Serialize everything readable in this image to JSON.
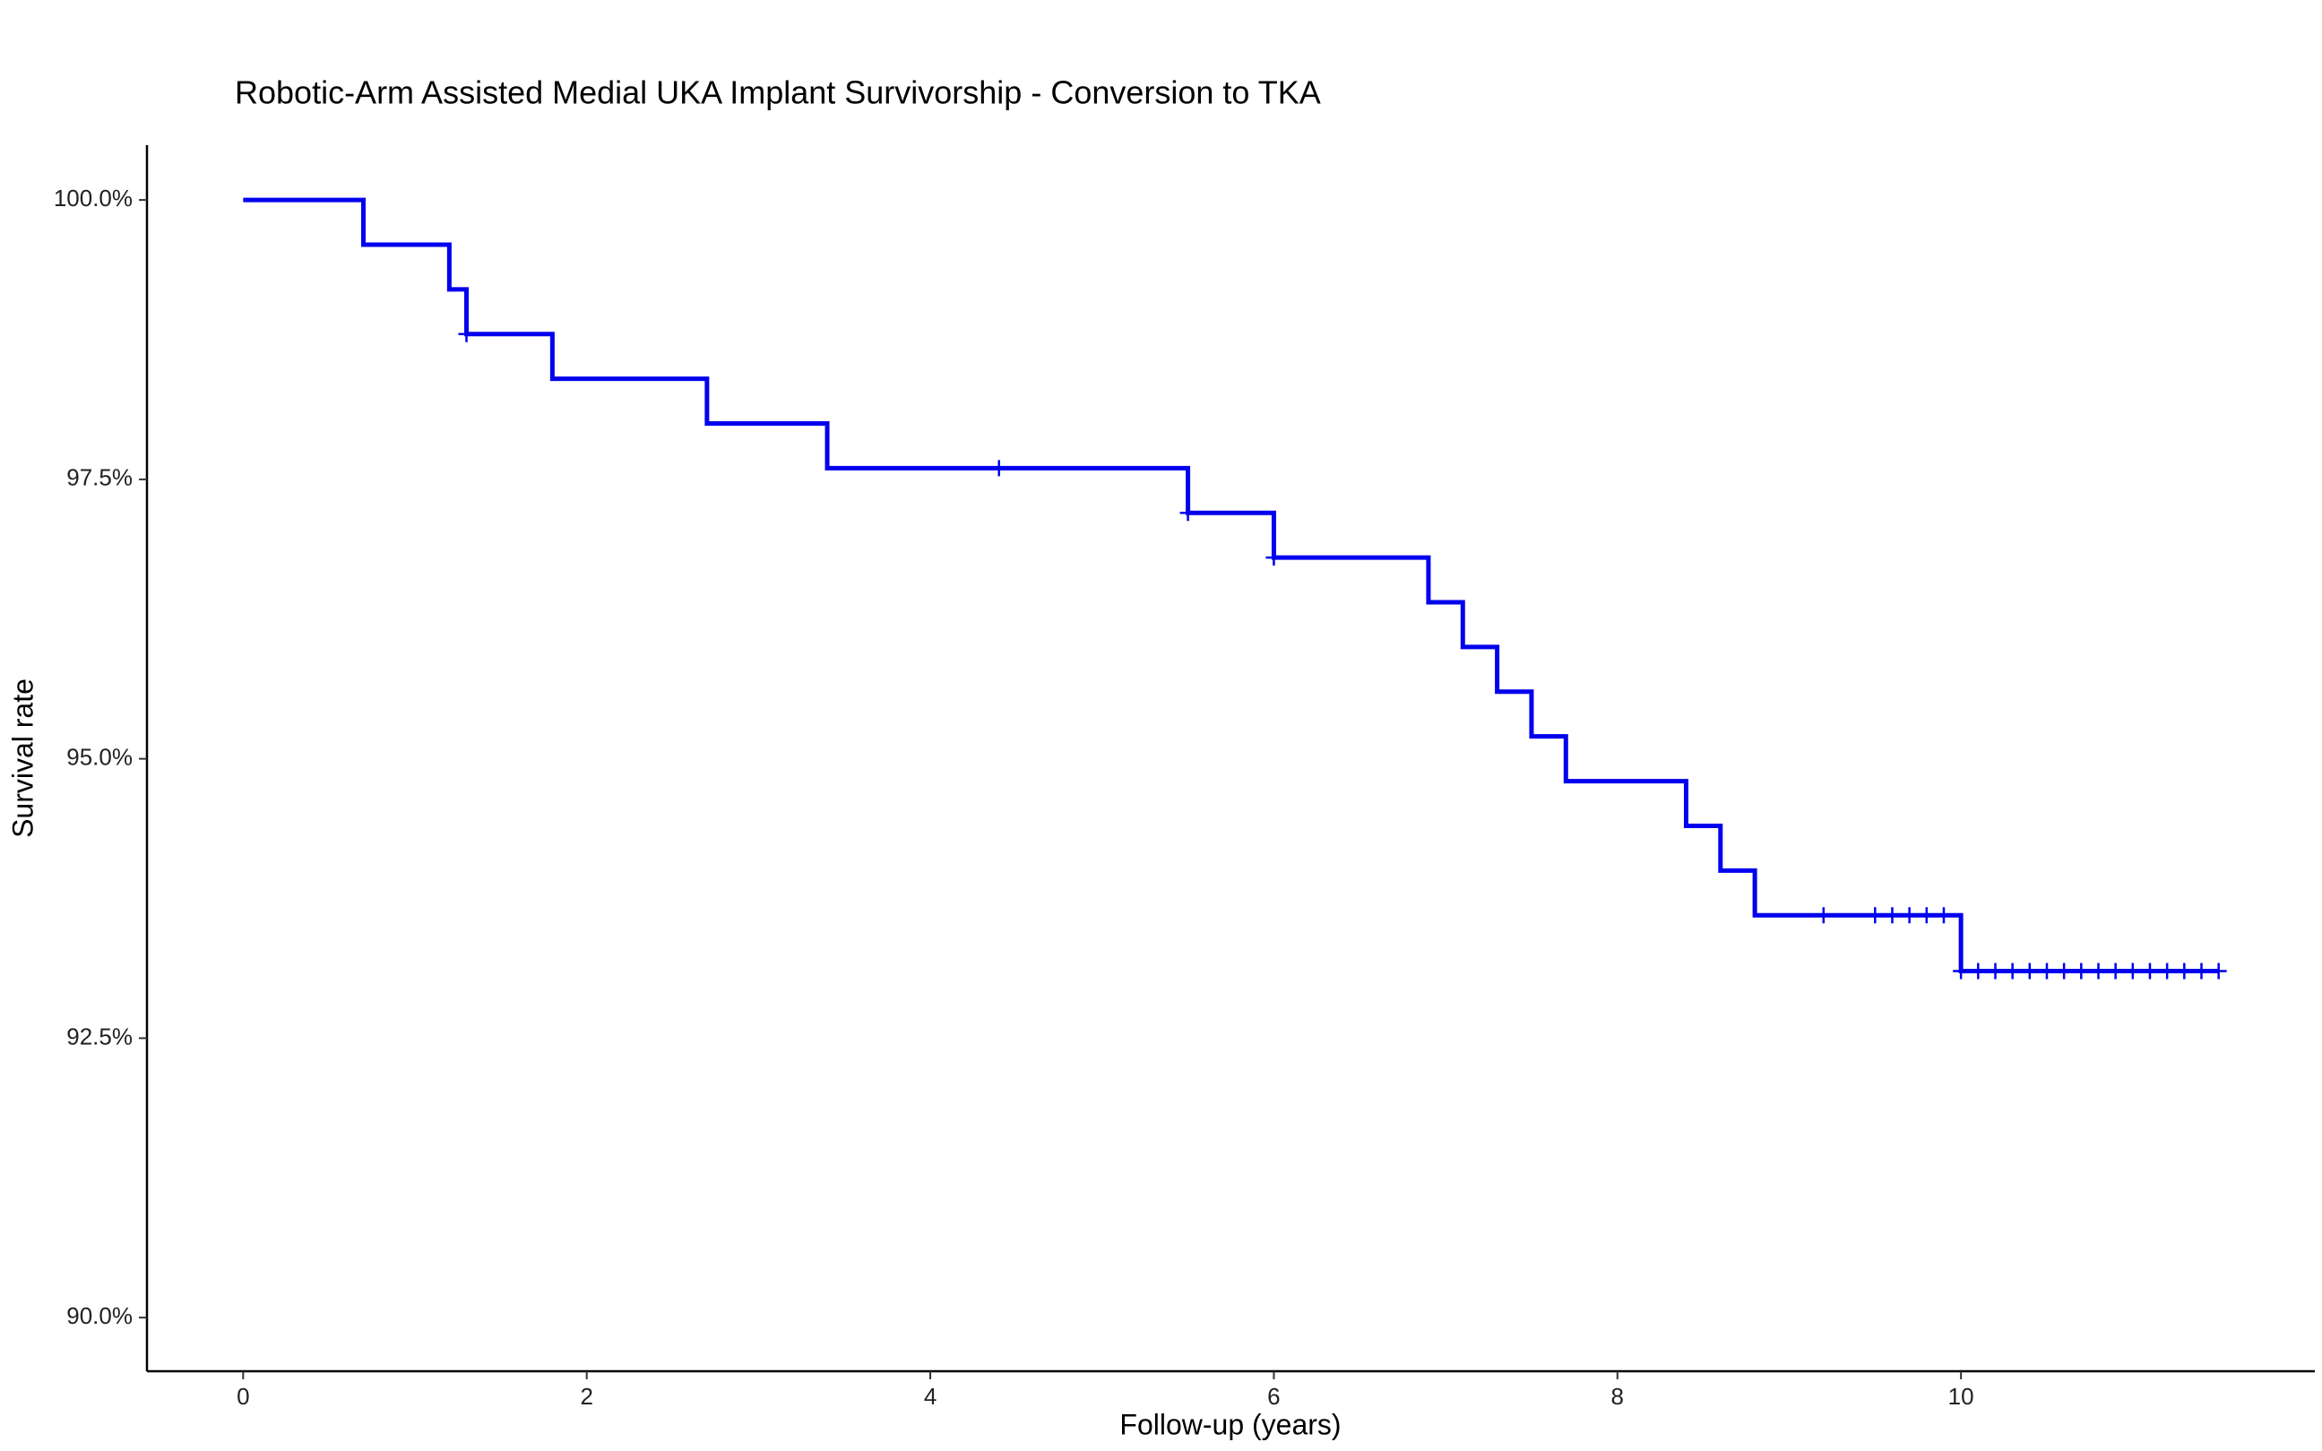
{
  "chart_data": {
    "type": "step",
    "title": "Robotic-Arm Assisted Medial UKA Implant Survivorship - Conversion to TKA",
    "x_label": "Follow-up (years)",
    "y_label": "Survival rate",
    "color": "#0000ee",
    "x": [
      0,
      0.7,
      1.2,
      1.3,
      1.8,
      2.7,
      3.4,
      5.5,
      6.0,
      6.9,
      7.1,
      7.3,
      7.5,
      7.7,
      8.4,
      8.6,
      8.8,
      10.0,
      11.5
    ],
    "values": [
      100.0,
      99.6,
      99.2,
      98.8,
      98.4,
      98.0,
      97.6,
      97.2,
      96.8,
      96.4,
      96.0,
      95.6,
      95.2,
      94.8,
      94.4,
      94.0,
      93.6,
      93.1,
      93.1
    ],
    "censor_x": [
      1.3,
      4.4,
      5.5,
      6.0,
      9.2,
      9.5,
      9.6,
      9.7,
      9.8,
      9.9,
      10.0,
      10.1,
      10.2,
      10.3,
      10.4,
      10.5,
      10.6,
      10.7,
      10.8,
      10.9,
      11.0,
      11.1,
      11.2,
      11.3,
      11.4,
      11.5
    ],
    "censor_values": [
      98.8,
      97.6,
      97.2,
      96.8,
      93.6,
      93.6,
      93.6,
      93.6,
      93.6,
      93.6,
      93.1,
      93.1,
      93.1,
      93.1,
      93.1,
      93.1,
      93.1,
      93.1,
      93.1,
      93.1,
      93.1,
      93.1,
      93.1,
      93.1,
      93.1,
      93.1
    ],
    "xlim": [
      -0.56,
      12.06
    ],
    "xticks": [
      0,
      2,
      4,
      6,
      8,
      10
    ],
    "ylim": [
      89.52,
      100.49
    ],
    "yticks": [
      {
        "value": 90,
        "label": "90.0%"
      },
      {
        "value": 92.5,
        "label": "92.5%"
      },
      {
        "value": 95,
        "label": "95.0%"
      },
      {
        "value": 97.5,
        "label": "97.5%"
      },
      {
        "value": 100,
        "label": "100.0%"
      }
    ],
    "grid": false
  }
}
